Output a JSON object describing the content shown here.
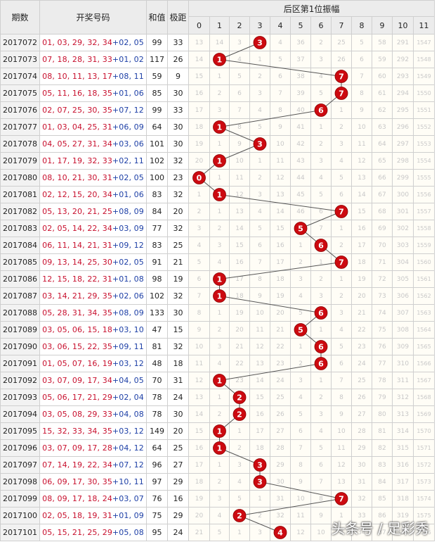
{
  "headers": {
    "period": "期数",
    "numbers": "开奖号码",
    "sum": "和值",
    "span": "极距",
    "zone_title": "后区第1位振幅"
  },
  "watermark": "头条号 / 足彩秀",
  "colors": {
    "front": "#c8102e",
    "back": "#1d3fa6",
    "ball": "#cc0a10",
    "line": "#555555"
  },
  "chart_data": {
    "type": "table",
    "columns": [
      "0",
      "1",
      "2",
      "3",
      "4",
      "5",
      "6",
      "7",
      "8",
      "9",
      "10",
      "11"
    ],
    "rows": [
      {
        "period": "2017072",
        "front": "01, 03, 29, 32, 34",
        "back": "02, 05",
        "sum": "99",
        "span": "33",
        "amp": 3,
        "cells": [
          "13",
          "14",
          "3",
          "3",
          "4",
          "36",
          "2",
          "25",
          "5",
          "58",
          "291",
          "1547"
        ]
      },
      {
        "period": "2017073",
        "front": "07, 18, 28, 31, 33",
        "back": "01, 02",
        "sum": "117",
        "span": "26",
        "amp": 1,
        "cells": [
          "14",
          "1",
          "4",
          "1",
          "5",
          "37",
          "3",
          "26",
          "6",
          "59",
          "292",
          "1548"
        ]
      },
      {
        "period": "2017074",
        "front": "08, 10, 11, 13, 17",
        "back": "08, 11",
        "sum": "59",
        "span": "9",
        "amp": 7,
        "cells": [
          "15",
          "1",
          "5",
          "2",
          "6",
          "38",
          "4",
          "7",
          "7",
          "60",
          "293",
          "1549"
        ]
      },
      {
        "period": "2017075",
        "front": "05, 11, 16, 18, 35",
        "back": "01, 06",
        "sum": "85",
        "span": "30",
        "amp": 7,
        "cells": [
          "16",
          "2",
          "6",
          "3",
          "7",
          "39",
          "5",
          "7",
          "8",
          "61",
          "294",
          "1550"
        ]
      },
      {
        "period": "2017076",
        "front": "02, 07, 25, 30, 35",
        "back": "07, 12",
        "sum": "99",
        "span": "33",
        "amp": 6,
        "cells": [
          "17",
          "3",
          "7",
          "4",
          "8",
          "40",
          "6",
          "1",
          "9",
          "62",
          "295",
          "1551"
        ]
      },
      {
        "period": "2017077",
        "front": "01, 03, 04, 25, 31",
        "back": "06, 09",
        "sum": "64",
        "span": "30",
        "amp": 1,
        "cells": [
          "18",
          "1",
          "8",
          "5",
          "9",
          "41",
          "1",
          "2",
          "10",
          "63",
          "296",
          "1552"
        ]
      },
      {
        "period": "2017078",
        "front": "04, 05, 27, 31, 34",
        "back": "03, 06",
        "sum": "101",
        "span": "30",
        "amp": 3,
        "cells": [
          "19",
          "1",
          "9",
          "3",
          "10",
          "42",
          "2",
          "3",
          "11",
          "64",
          "297",
          "1553"
        ]
      },
      {
        "period": "2017079",
        "front": "01, 17, 19, 32, 33",
        "back": "02, 11",
        "sum": "102",
        "span": "32",
        "amp": 1,
        "cells": [
          "20",
          "1",
          "10",
          "1",
          "11",
          "43",
          "3",
          "4",
          "12",
          "65",
          "298",
          "1554"
        ]
      },
      {
        "period": "2017080",
        "front": "08, 10, 21, 30, 31",
        "back": "02, 05",
        "sum": "100",
        "span": "23",
        "amp": 0,
        "cells": [
          "0",
          "1",
          "11",
          "2",
          "12",
          "44",
          "4",
          "5",
          "13",
          "66",
          "299",
          "1555"
        ]
      },
      {
        "period": "2017081",
        "front": "02, 12, 15, 20, 34",
        "back": "01, 06",
        "sum": "83",
        "span": "32",
        "amp": 1,
        "cells": [
          "1",
          "1",
          "12",
          "3",
          "13",
          "45",
          "5",
          "6",
          "14",
          "67",
          "300",
          "1556"
        ]
      },
      {
        "period": "2017082",
        "front": "05, 13, 20, 21, 25",
        "back": "08, 09",
        "sum": "84",
        "span": "20",
        "amp": 7,
        "cells": [
          "2",
          "1",
          "13",
          "4",
          "14",
          "46",
          "6",
          "7",
          "15",
          "68",
          "301",
          "1557"
        ]
      },
      {
        "period": "2017083",
        "front": "02, 05, 14, 22, 34",
        "back": "03, 09",
        "sum": "77",
        "span": "32",
        "amp": 5,
        "cells": [
          "3",
          "2",
          "14",
          "5",
          "15",
          "5",
          "7",
          "1",
          "16",
          "69",
          "302",
          "1558"
        ]
      },
      {
        "period": "2017084",
        "front": "06, 11, 14, 21, 31",
        "back": "09, 12",
        "sum": "83",
        "span": "25",
        "amp": 6,
        "cells": [
          "4",
          "3",
          "15",
          "6",
          "16",
          "1",
          "6",
          "2",
          "17",
          "70",
          "303",
          "1559"
        ]
      },
      {
        "period": "2017085",
        "front": "09, 13, 14, 25, 30",
        "back": "02, 05",
        "sum": "91",
        "span": "21",
        "amp": 7,
        "cells": [
          "5",
          "4",
          "16",
          "7",
          "17",
          "2",
          "1",
          "7",
          "18",
          "71",
          "304",
          "1560"
        ]
      },
      {
        "period": "2017086",
        "front": "12, 15, 18, 22, 31",
        "back": "01, 08",
        "sum": "98",
        "span": "19",
        "amp": 1,
        "cells": [
          "6",
          "1",
          "17",
          "8",
          "18",
          "3",
          "2",
          "1",
          "19",
          "72",
          "305",
          "1561"
        ]
      },
      {
        "period": "2017087",
        "front": "03, 14, 21, 29, 35",
        "back": "02, 06",
        "sum": "102",
        "span": "32",
        "amp": 1,
        "cells": [
          "7",
          "1",
          "18",
          "9",
          "19",
          "4",
          "3",
          "2",
          "20",
          "73",
          "306",
          "1562"
        ]
      },
      {
        "period": "2017088",
        "front": "05, 28, 31, 34, 35",
        "back": "08, 09",
        "sum": "133",
        "span": "30",
        "amp": 6,
        "cells": [
          "8",
          "1",
          "19",
          "10",
          "20",
          "5",
          "6",
          "3",
          "21",
          "74",
          "307",
          "1563"
        ]
      },
      {
        "period": "2017089",
        "front": "03, 05, 06, 15, 18",
        "back": "03, 10",
        "sum": "47",
        "span": "15",
        "amp": 5,
        "cells": [
          "9",
          "2",
          "20",
          "11",
          "21",
          "5",
          "1",
          "4",
          "22",
          "75",
          "308",
          "1564"
        ]
      },
      {
        "period": "2017090",
        "front": "03, 06, 15, 22, 35",
        "back": "09, 11",
        "sum": "81",
        "span": "32",
        "amp": 6,
        "cells": [
          "10",
          "3",
          "21",
          "12",
          "22",
          "1",
          "6",
          "5",
          "23",
          "76",
          "309",
          "1565"
        ]
      },
      {
        "period": "2017091",
        "front": "01, 05, 07, 16, 19",
        "back": "03, 12",
        "sum": "48",
        "span": "18",
        "amp": 6,
        "cells": [
          "11",
          "4",
          "22",
          "13",
          "23",
          "2",
          "6",
          "6",
          "24",
          "77",
          "310",
          "1566"
        ]
      },
      {
        "period": "2017092",
        "front": "03, 07, 09, 17, 34",
        "back": "04, 05",
        "sum": "70",
        "span": "31",
        "amp": 1,
        "cells": [
          "12",
          "1",
          "23",
          "14",
          "24",
          "3",
          "1",
          "7",
          "25",
          "78",
          "311",
          "1567"
        ]
      },
      {
        "period": "2017093",
        "front": "05, 06, 17, 21, 29",
        "back": "02, 04",
        "sum": "78",
        "span": "24",
        "amp": 2,
        "cells": [
          "13",
          "1",
          "2",
          "15",
          "25",
          "4",
          "2",
          "8",
          "26",
          "79",
          "312",
          "1568"
        ]
      },
      {
        "period": "2017094",
        "front": "03, 05, 08, 29, 33",
        "back": "04, 08",
        "sum": "78",
        "span": "30",
        "amp": 2,
        "cells": [
          "14",
          "2",
          "2",
          "16",
          "26",
          "5",
          "3",
          "9",
          "27",
          "80",
          "313",
          "1569"
        ]
      },
      {
        "period": "2017095",
        "front": "15, 32, 33, 34, 35",
        "back": "03, 12",
        "sum": "149",
        "span": "20",
        "amp": 1,
        "cells": [
          "15",
          "1",
          "1",
          "17",
          "27",
          "6",
          "4",
          "10",
          "28",
          "81",
          "314",
          "1570"
        ]
      },
      {
        "period": "2017096",
        "front": "03, 07, 09, 17, 28",
        "back": "04, 12",
        "sum": "64",
        "span": "25",
        "amp": 1,
        "cells": [
          "16",
          "1",
          "2",
          "18",
          "28",
          "7",
          "5",
          "11",
          "29",
          "82",
          "315",
          "1571"
        ]
      },
      {
        "period": "2017097",
        "front": "07, 14, 19, 22, 34",
        "back": "07, 12",
        "sum": "96",
        "span": "27",
        "amp": 3,
        "cells": [
          "17",
          "1",
          "3",
          "3",
          "29",
          "8",
          "6",
          "12",
          "30",
          "83",
          "316",
          "1572"
        ]
      },
      {
        "period": "2017098",
        "front": "06, 09, 17, 30, 35",
        "back": "10, 11",
        "sum": "97",
        "span": "29",
        "amp": 3,
        "cells": [
          "18",
          "2",
          "4",
          "3",
          "30",
          "9",
          "7",
          "13",
          "31",
          "84",
          "317",
          "1573"
        ]
      },
      {
        "period": "2017099",
        "front": "08, 09, 17, 18, 24",
        "back": "03, 07",
        "sum": "76",
        "span": "16",
        "amp": 7,
        "cells": [
          "19",
          "3",
          "5",
          "1",
          "31",
          "10",
          "8",
          "7",
          "32",
          "85",
          "318",
          "1574"
        ]
      },
      {
        "period": "2017100",
        "front": "02, 05, 18, 19, 31",
        "back": "01, 09",
        "sum": "75",
        "span": "29",
        "amp": 2,
        "cells": [
          "20",
          "4",
          "2",
          "2",
          "32",
          "11",
          "9",
          "1",
          "33",
          "86",
          "319",
          "1575"
        ]
      },
      {
        "period": "2017101",
        "front": "05, 15, 21, 25, 29",
        "back": "05, 08",
        "sum": "95",
        "span": "24",
        "amp": 4,
        "cells": [
          "21",
          "5",
          "1",
          "3",
          "4",
          "12",
          "10",
          "2",
          "34",
          "87",
          "320",
          "1576"
        ]
      }
    ]
  }
}
